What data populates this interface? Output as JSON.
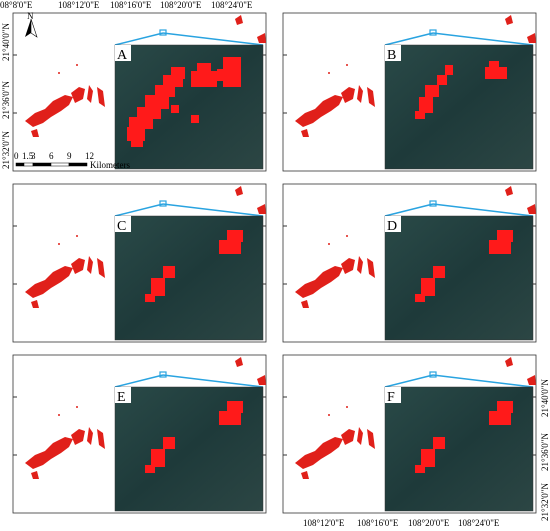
{
  "top_axis": {
    "labels": [
      "08°8'0\"E",
      "108°12'0\"E",
      "108°16'0\"E",
      "108°20'0\"E",
      "108°24'0\"E"
    ]
  },
  "left_axis": {
    "labels": [
      "21°40'0\"N",
      "21°36'0\"N",
      "21°32'0\"N"
    ]
  },
  "right_axis": {
    "labels": [
      "21°40'0\"N",
      "21°36'0\"N",
      "21°32'0\"N"
    ]
  },
  "bottom_axis": {
    "labels": [
      "108°12'0\"E",
      "108°16'0\"E",
      "108°20'0\"E",
      "108°24'0\"E"
    ]
  },
  "north_arrow": "N",
  "scale_bar": {
    "ticks": [
      "0",
      "1.5",
      "3",
      "6",
      "9",
      "12"
    ],
    "unit": "Kilometers"
  },
  "panels": [
    {
      "label": "A"
    },
    {
      "label": "B"
    },
    {
      "label": "C"
    },
    {
      "label": "D"
    },
    {
      "label": "E"
    },
    {
      "label": "F"
    }
  ]
}
